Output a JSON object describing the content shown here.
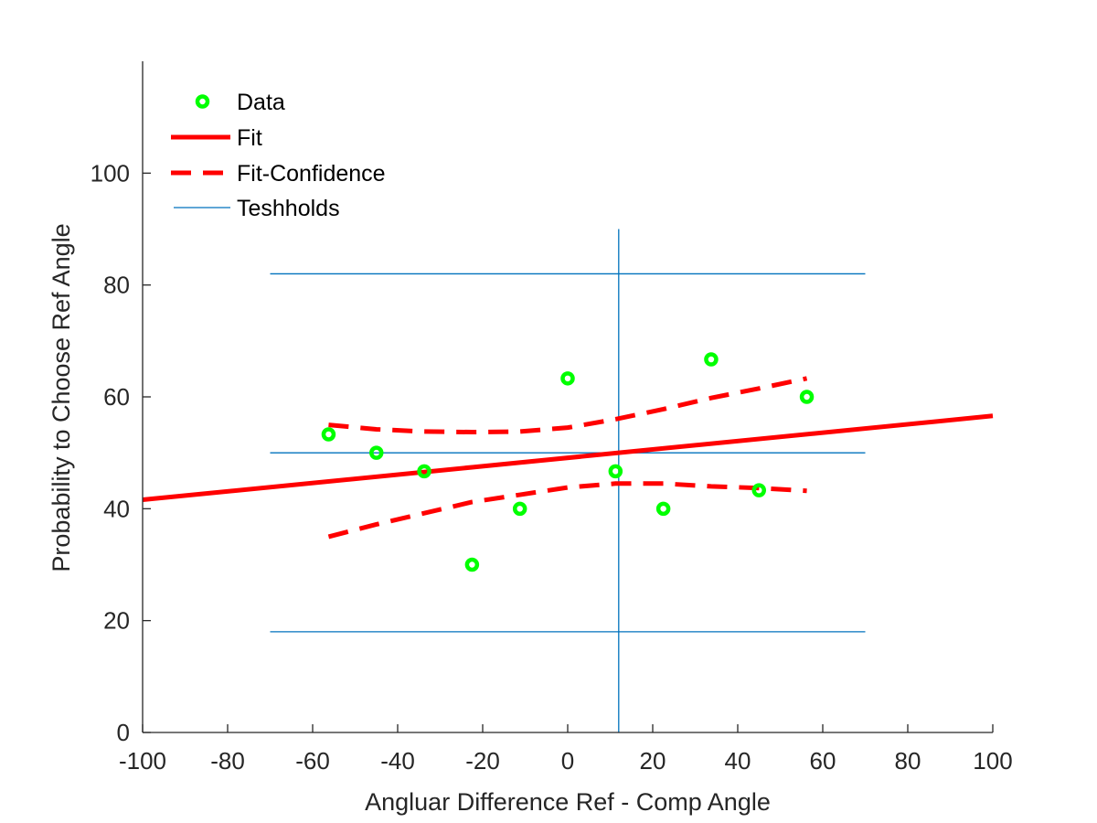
{
  "chart_data": {
    "type": "scatter",
    "title": "",
    "xlabel": "Angluar Difference Ref - Comp Angle",
    "ylabel": "Probability to Choose Ref Angle",
    "xlim": [
      -100,
      100
    ],
    "ylim": [
      0,
      120
    ],
    "xticks": [
      -100,
      -80,
      -60,
      -40,
      -20,
      0,
      20,
      40,
      60,
      80,
      100
    ],
    "yticks": [
      0,
      20,
      40,
      60,
      80,
      100
    ],
    "xtick_labels": [
      "-100",
      "-80",
      "-60",
      "-40",
      "-20",
      "0",
      "20",
      "40",
      "60",
      "80",
      "100"
    ],
    "ytick_labels": [
      "0",
      "20",
      "40",
      "60",
      "80",
      "100"
    ],
    "grid": false,
    "legend_position": "top-left",
    "colors": {
      "data": "#00ff00",
      "fit": "#ff0000",
      "confidence": "#ff0000",
      "thresholds": "#0072bd",
      "axis": "#262626"
    },
    "series": [
      {
        "name": "Data",
        "kind": "marker",
        "x": [
          -56.25,
          -45,
          -33.75,
          -22.5,
          -11.25,
          0,
          11.25,
          22.5,
          33.75,
          45,
          56.25
        ],
        "y": [
          53.3,
          50,
          46.7,
          30,
          40,
          63.3,
          46.7,
          40,
          66.7,
          43.3,
          60
        ]
      },
      {
        "name": "Fit",
        "kind": "line",
        "x": [
          -100,
          100
        ],
        "y": [
          41.6,
          56.6
        ]
      },
      {
        "name": "Fit-Confidence",
        "kind": "dashed",
        "upper": {
          "x": [
            -56.25,
            -45,
            -33.75,
            -22.5,
            -11.25,
            0,
            11.25,
            22.5,
            33.75,
            45,
            56.25
          ],
          "y": [
            55.0,
            54.2,
            53.8,
            53.7,
            53.8,
            54.5,
            56.0,
            57.8,
            59.8,
            61.5,
            63.3
          ]
        },
        "lower": {
          "x": [
            -56.25,
            -45,
            -33.75,
            -22.5,
            -11.25,
            0,
            11.25,
            22.5,
            33.75,
            45,
            56.25
          ],
          "y": [
            35.0,
            37.2,
            39.2,
            41.2,
            42.5,
            43.8,
            44.5,
            44.5,
            44.0,
            43.7,
            43.2
          ]
        }
      },
      {
        "name": "Teshholds",
        "kind": "reference-lines",
        "horizontal": [
          {
            "y": 82,
            "x": [
              -70,
              70
            ]
          },
          {
            "y": 50,
            "x": [
              -70,
              70
            ]
          },
          {
            "y": 18,
            "x": [
              -70,
              70
            ]
          }
        ],
        "vertical": [
          {
            "x": 12,
            "y": [
              0,
              90
            ]
          }
        ]
      }
    ]
  }
}
